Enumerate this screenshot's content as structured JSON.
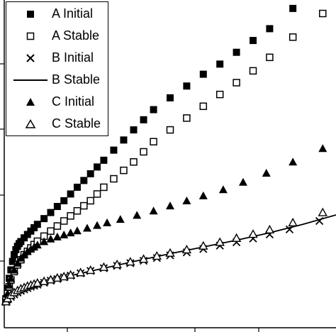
{
  "chart_data": {
    "type": "scatter",
    "title": "",
    "xlabel": "",
    "ylabel": "",
    "xlim": [
      0,
      10
    ],
    "ylim": [
      0,
      9
    ],
    "grid": false,
    "legend_position": "top-left",
    "series": [
      {
        "name": "A Initial",
        "marker": "filled-square",
        "x": [
          0.05,
          0.1,
          0.15,
          0.2,
          0.25,
          0.3,
          0.35,
          0.4,
          0.45,
          0.5,
          0.6,
          0.7,
          0.8,
          0.9,
          1.0,
          1.2,
          1.4,
          1.6,
          1.8,
          2.0,
          2.2,
          2.4,
          2.6,
          2.8,
          3.0,
          3.3,
          3.6,
          3.9,
          4.2,
          4.5,
          5.0,
          5.5,
          6.0,
          6.5,
          7.0,
          7.5,
          8.0,
          8.7
        ],
        "y": [
          0.15,
          0.45,
          0.75,
          1.0,
          1.25,
          1.45,
          1.6,
          1.7,
          1.78,
          1.84,
          1.95,
          2.05,
          2.15,
          2.25,
          2.35,
          2.52,
          2.7,
          2.88,
          3.05,
          3.25,
          3.45,
          3.65,
          3.85,
          4.05,
          4.25,
          4.55,
          4.85,
          5.15,
          5.45,
          5.75,
          6.1,
          6.45,
          6.8,
          7.1,
          7.45,
          7.8,
          8.15,
          8.75
        ]
      },
      {
        "name": "A Stable",
        "marker": "open-square",
        "x": [
          0.05,
          0.1,
          0.15,
          0.2,
          0.3,
          0.4,
          0.5,
          0.6,
          0.7,
          0.8,
          0.9,
          1.0,
          1.2,
          1.4,
          1.6,
          1.8,
          2.0,
          2.2,
          2.4,
          2.6,
          2.8,
          3.0,
          3.3,
          3.6,
          3.9,
          4.2,
          4.5,
          5.0,
          5.5,
          6.0,
          6.5,
          7.0,
          7.5,
          8.0,
          8.7,
          9.6
        ],
        "y": [
          0.1,
          0.3,
          0.5,
          0.7,
          0.95,
          1.15,
          1.3,
          1.45,
          1.55,
          1.65,
          1.75,
          1.85,
          2.0,
          2.15,
          2.3,
          2.45,
          2.6,
          2.75,
          2.9,
          3.05,
          3.25,
          3.45,
          3.7,
          3.95,
          4.2,
          4.5,
          4.8,
          5.15,
          5.5,
          5.85,
          6.2,
          6.55,
          6.9,
          7.3,
          7.9,
          8.6
        ]
      },
      {
        "name": "B Initial",
        "marker": "cross",
        "x": [
          0.05,
          0.1,
          0.2,
          0.3,
          0.4,
          0.5,
          0.6,
          0.7,
          0.8,
          0.9,
          1.0,
          1.2,
          1.4,
          1.6,
          1.8,
          2.0,
          2.3,
          2.6,
          3.0,
          3.4,
          3.8,
          4.2,
          4.6,
          5.0,
          5.5,
          6.0,
          6.5,
          7.0,
          7.5,
          8.0,
          8.6,
          9.5
        ],
        "y": [
          0.05,
          0.12,
          0.2,
          0.27,
          0.33,
          0.38,
          0.42,
          0.46,
          0.5,
          0.53,
          0.56,
          0.62,
          0.68,
          0.73,
          0.78,
          0.83,
          0.9,
          0.97,
          1.05,
          1.12,
          1.2,
          1.27,
          1.35,
          1.43,
          1.52,
          1.62,
          1.72,
          1.82,
          1.93,
          2.05,
          2.2,
          2.45
        ]
      },
      {
        "name": "B Stable",
        "marker": "line",
        "x": [
          0,
          0.3,
          0.6,
          1.0,
          1.5,
          2.0,
          3.0,
          4.0,
          5.0,
          6.0,
          7.0,
          8.0,
          9.0,
          10.0
        ],
        "y": [
          0,
          0.28,
          0.42,
          0.56,
          0.7,
          0.83,
          1.05,
          1.27,
          1.48,
          1.68,
          1.88,
          2.1,
          2.35,
          2.63
        ]
      },
      {
        "name": "C Initial",
        "marker": "filled-triangle",
        "x": [
          0.05,
          0.1,
          0.15,
          0.2,
          0.3,
          0.4,
          0.5,
          0.6,
          0.7,
          0.8,
          0.9,
          1.0,
          1.2,
          1.4,
          1.6,
          1.8,
          2.0,
          2.2,
          2.5,
          2.8,
          3.1,
          3.5,
          4.0,
          4.5,
          5.0,
          5.5,
          6.0,
          6.6,
          7.2,
          7.9,
          8.7,
          9.6
        ],
        "y": [
          0.1,
          0.3,
          0.55,
          0.75,
          1.0,
          1.2,
          1.35,
          1.45,
          1.55,
          1.62,
          1.68,
          1.74,
          1.84,
          1.92,
          1.98,
          2.04,
          2.1,
          2.16,
          2.24,
          2.32,
          2.4,
          2.5,
          2.62,
          2.75,
          2.9,
          3.05,
          3.2,
          3.38,
          3.6,
          3.87,
          4.2,
          4.6
        ]
      },
      {
        "name": "C Stable",
        "marker": "open-triangle",
        "x": [
          0.05,
          0.1,
          0.2,
          0.3,
          0.4,
          0.5,
          0.6,
          0.7,
          0.8,
          0.9,
          1.0,
          1.2,
          1.4,
          1.6,
          1.8,
          2.0,
          2.3,
          2.6,
          3.0,
          3.4,
          3.8,
          4.2,
          4.6,
          5.0,
          5.5,
          6.0,
          6.5,
          7.0,
          7.5,
          8.0,
          8.7,
          9.6
        ],
        "y": [
          0.06,
          0.15,
          0.25,
          0.33,
          0.39,
          0.44,
          0.48,
          0.52,
          0.55,
          0.58,
          0.61,
          0.66,
          0.71,
          0.76,
          0.8,
          0.85,
          0.92,
          0.99,
          1.08,
          1.16,
          1.24,
          1.32,
          1.41,
          1.5,
          1.6,
          1.71,
          1.82,
          1.94,
          2.06,
          2.19,
          2.4,
          2.7
        ]
      }
    ]
  },
  "legend": {
    "items": [
      {
        "label": "A Initial",
        "marker": "filled-square"
      },
      {
        "label": "A Stable",
        "marker": "open-square"
      },
      {
        "label": "B Initial",
        "marker": "cross"
      },
      {
        "label": "B Stable",
        "marker": "line"
      },
      {
        "label": "C Initial",
        "marker": "filled-triangle"
      },
      {
        "label": "C Stable",
        "marker": "open-triangle"
      }
    ]
  }
}
